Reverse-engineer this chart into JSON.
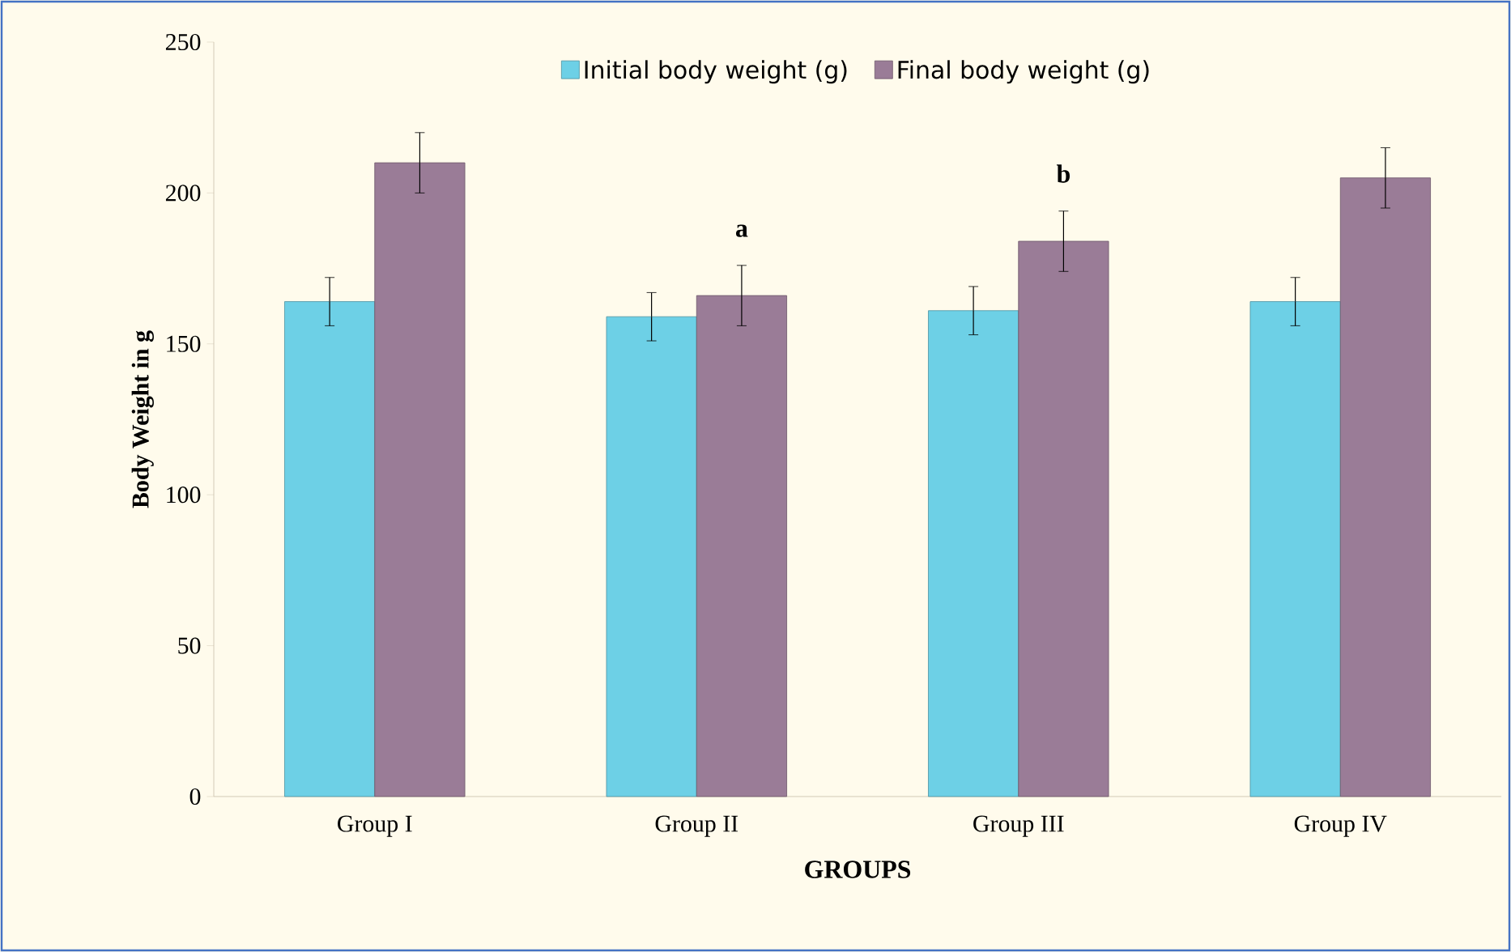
{
  "chart_data": {
    "type": "bar",
    "xlabel": "GROUPS",
    "ylabel": "Body Weight  in g",
    "categories": [
      "Group I",
      "Group II",
      "Group III",
      "Group IV"
    ],
    "series": [
      {
        "name": "Initial body weight (g)",
        "color": "#6dd0e6",
        "values": [
          164,
          159,
          161,
          164
        ],
        "errors": [
          8,
          8,
          8,
          8
        ]
      },
      {
        "name": "Final  body weight (g)",
        "color": "#9a7c97",
        "values": [
          210,
          166,
          184,
          205
        ],
        "errors": [
          10,
          10,
          10,
          10
        ]
      }
    ],
    "annotations": [
      {
        "text": "a",
        "x": "Group II",
        "y": 166
      },
      {
        "text": "b",
        "x": "Group III",
        "y": 184
      }
    ],
    "ylim": [
      0,
      250
    ],
    "yticks": [
      0,
      50,
      100,
      150,
      200,
      250
    ],
    "grid": false,
    "legend": "top"
  }
}
